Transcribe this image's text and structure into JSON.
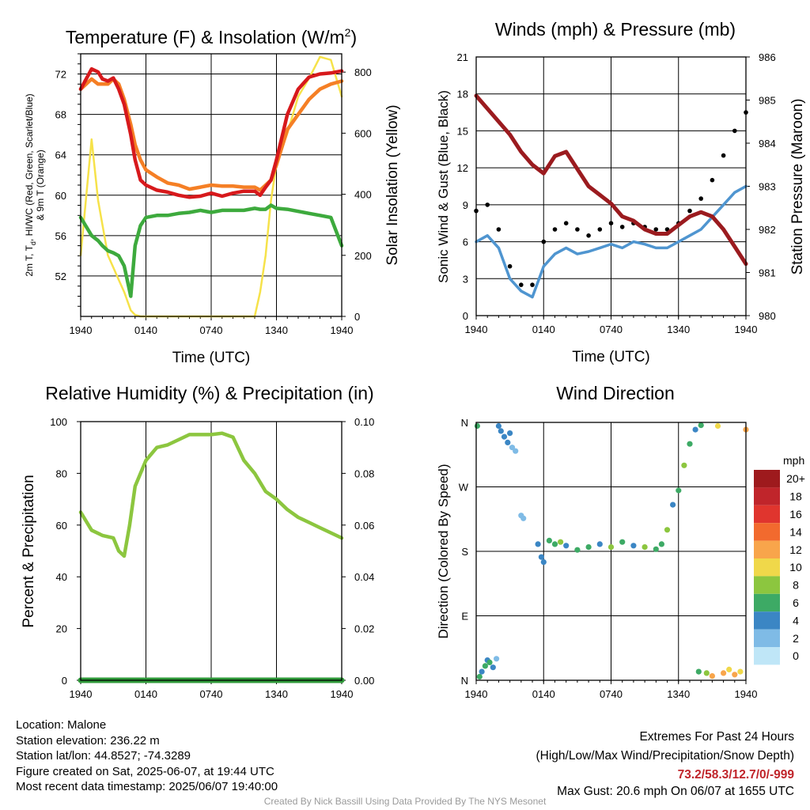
{
  "colors": {
    "temp": "#d7191c",
    "dewpoint": "#3daa3d",
    "hiwc_green": "#3daa3d",
    "hiwc_blue": "#4f95d0",
    "temp9m": "#f57f25",
    "solar": "#f6e24a",
    "rh": "#8cc63f",
    "precip": "#2f9a3a",
    "wind": "#4f95d0",
    "gust": "#000000",
    "pressure": "#9b1b1f",
    "extremes": "#c0252b"
  },
  "chart_data": [
    {
      "type": "line",
      "title": "Temperature (F) & Insolation (W/m²)",
      "xlabel": "Time (UTC)",
      "ylabel": "2m T, T_d, HI/WC (Red, Green, Scarlet/Blue) & 9m T (Orange)",
      "ylabel_line1": "2m T, T",
      "ylabel_sub": "d",
      "ylabel_line1b": ", HI/WC (Red, Green, Scarlet/Blue)",
      "ylabel_line2": "& 9m T (Orange)",
      "y2label": "Solar Insolation (Yellow)",
      "x_ticks": [
        "1940",
        "0140",
        "0740",
        "1340",
        "1940"
      ],
      "ylim": [
        48,
        74
      ],
      "y_ticks": [
        52,
        56,
        60,
        64,
        68,
        72
      ],
      "y2lim": [
        0,
        860
      ],
      "y2_ticks": [
        0,
        200,
        400,
        600,
        800
      ],
      "x_hours": [
        0,
        1,
        1.6,
        2,
        2.5,
        3,
        3.5,
        4,
        4.6,
        5,
        5.5,
        6,
        7,
        8,
        9,
        10,
        11,
        12,
        13,
        14,
        15,
        16,
        16.5,
        17,
        17.5,
        18,
        19,
        20,
        21,
        22,
        23,
        24
      ],
      "series": [
        {
          "name": "2m T",
          "axis": "left",
          "color": "#d7191c",
          "values": [
            70.5,
            72.5,
            72.2,
            71.5,
            71.3,
            71.6,
            70.5,
            69.0,
            66.0,
            63.5,
            61.5,
            61.0,
            60.5,
            60.3,
            60.0,
            59.8,
            59.9,
            60.2,
            59.9,
            60.2,
            60.4,
            60.4,
            60.0,
            60.8,
            61.5,
            63.5,
            68.0,
            70.5,
            71.7,
            72.0,
            72.1,
            72.3
          ]
        },
        {
          "name": "9m T",
          "axis": "left",
          "color": "#f57f25",
          "values": [
            70.5,
            71.5,
            71.0,
            71.0,
            71.0,
            71.5,
            71.0,
            69.5,
            67.0,
            65.0,
            63.5,
            62.5,
            61.8,
            61.2,
            61.0,
            60.6,
            60.8,
            61.0,
            60.9,
            60.9,
            60.8,
            60.8,
            60.5,
            61.0,
            61.5,
            63.0,
            66.5,
            68.0,
            69.5,
            70.5,
            71.0,
            71.3
          ]
        },
        {
          "name": "T_d",
          "axis": "left",
          "color": "#3daa3d",
          "values": [
            57.8,
            56.0,
            55.5,
            55.0,
            54.5,
            54.3,
            54.0,
            53.0,
            50.0,
            55.0,
            57.0,
            57.8,
            58.0,
            58.0,
            58.2,
            58.3,
            58.5,
            58.3,
            58.5,
            58.5,
            58.5,
            58.7,
            58.6,
            58.6,
            59.0,
            58.7,
            58.6,
            58.4,
            58.2,
            58.0,
            57.8,
            55.0
          ]
        },
        {
          "name": "Solar",
          "axis": "right",
          "color": "#f6e24a",
          "values": [
            200,
            580,
            380,
            300,
            200,
            160,
            120,
            80,
            20,
            5,
            0,
            0,
            0,
            0,
            0,
            0,
            0,
            0,
            0,
            0,
            0,
            0,
            80,
            200,
            380,
            500,
            600,
            720,
            780,
            850,
            840,
            720
          ]
        }
      ]
    },
    {
      "type": "line",
      "title": "Winds (mph) & Pressure (mb)",
      "xlabel": "Time (UTC)",
      "ylabel": "Sonic Wind & Gust (Blue, Black)",
      "y2label": "Station Pressure (Maroon)",
      "x_ticks": [
        "1940",
        "0140",
        "0740",
        "1340",
        "1940"
      ],
      "ylim": [
        0,
        21
      ],
      "y_ticks": [
        0,
        3,
        6,
        9,
        12,
        15,
        18,
        21
      ],
      "y2lim": [
        980,
        986
      ],
      "y2_ticks": [
        980,
        981,
        982,
        983,
        984,
        985,
        986
      ],
      "x_hours": [
        0,
        1,
        2,
        3,
        4,
        5,
        6,
        7,
        8,
        9,
        10,
        11,
        12,
        13,
        14,
        15,
        16,
        17,
        18,
        19,
        20,
        21,
        22,
        23,
        24
      ],
      "series": [
        {
          "name": "Sonic Wind",
          "axis": "left",
          "color": "#4f95d0",
          "values": [
            6.0,
            6.5,
            5.5,
            3.0,
            2.0,
            1.5,
            4.0,
            5.0,
            5.5,
            5.0,
            5.2,
            5.5,
            5.8,
            5.5,
            6.0,
            5.8,
            5.5,
            5.5,
            6.0,
            6.5,
            7.0,
            8.0,
            9.0,
            10.0,
            10.5
          ]
        },
        {
          "name": "Gust",
          "axis": "left",
          "color": "#000000",
          "values": [
            8.5,
            9.0,
            7.0,
            4.0,
            2.5,
            2.5,
            6.0,
            7.0,
            7.5,
            7.0,
            6.5,
            7.0,
            7.5,
            7.2,
            7.5,
            7.2,
            7.0,
            7.0,
            7.5,
            8.5,
            9.5,
            11.0,
            13.0,
            15.0,
            16.5
          ]
        },
        {
          "name": "Pressure",
          "axis": "right",
          "color": "#9b1b1f",
          "values": [
            985.1,
            984.8,
            984.5,
            984.2,
            983.8,
            983.5,
            983.3,
            983.7,
            983.8,
            983.4,
            983.0,
            982.8,
            982.6,
            982.3,
            982.2,
            982.0,
            981.9,
            981.9,
            982.1,
            982.3,
            982.4,
            982.3,
            982.0,
            981.6,
            981.2
          ]
        }
      ]
    },
    {
      "type": "line",
      "title": "Relative Humidity (%) & Precipitation (in)",
      "xlabel": "",
      "ylabel": "Percent & Precipitation",
      "x_ticks": [
        "1940",
        "0140",
        "0740",
        "1340",
        "1940"
      ],
      "ylim": [
        0,
        100
      ],
      "y_ticks": [
        0,
        20,
        40,
        60,
        80,
        100
      ],
      "y2lim": [
        0,
        0.1
      ],
      "y2_ticks": [
        "0.00",
        "0.02",
        "0.04",
        "0.06",
        "0.08",
        "0.10"
      ],
      "x_hours": [
        0,
        1,
        2,
        3,
        3.5,
        4,
        4.5,
        5,
        6,
        7,
        8,
        9,
        10,
        11,
        12,
        13,
        14,
        15,
        16,
        17,
        18,
        19,
        20,
        21,
        22,
        23,
        24
      ],
      "series": [
        {
          "name": "Relative Humidity",
          "axis": "left",
          "color": "#8cc63f",
          "values": [
            65,
            58,
            56,
            55,
            50,
            48,
            60,
            75,
            85,
            90,
            91,
            93,
            95,
            95,
            95,
            95.5,
            94,
            85,
            80,
            73,
            70,
            66,
            63,
            61,
            59,
            57,
            55
          ]
        },
        {
          "name": "Precipitation",
          "axis": "right",
          "color": "#2f9a3a",
          "values": [
            0,
            0,
            0,
            0,
            0,
            0,
            0,
            0,
            0,
            0,
            0,
            0,
            0,
            0,
            0,
            0,
            0,
            0,
            0,
            0,
            0,
            0,
            0,
            0,
            0,
            0,
            0
          ]
        }
      ]
    },
    {
      "type": "scatter",
      "title": "Wind Direction",
      "ylabel": "Direction (Colored By Speed)",
      "x_ticks": [
        "1940",
        "0140",
        "0740",
        "1340",
        "1940"
      ],
      "y_ticks": [
        "N",
        "E",
        "S",
        "W",
        "N"
      ],
      "ylim": [
        0,
        360
      ],
      "legend_title": "mph",
      "legend_labels": [
        "20+",
        "18",
        "16",
        "14",
        "12",
        "10",
        "8",
        "6",
        "4",
        "2",
        "0"
      ],
      "legend_colors": [
        "#9e1a1d",
        "#c0252b",
        "#e0352e",
        "#f26a2e",
        "#f8a54b",
        "#f0d84a",
        "#8cc63f",
        "#3daa65",
        "#3b86c4",
        "#7fbbe6",
        "#bfe6f7"
      ],
      "points": [
        {
          "x": 0.1,
          "y": 355,
          "s": 5
        },
        {
          "x": 0.3,
          "y": 5,
          "s": 6
        },
        {
          "x": 0.5,
          "y": 12,
          "s": 4
        },
        {
          "x": 0.8,
          "y": 20,
          "s": 5
        },
        {
          "x": 1.0,
          "y": 28,
          "s": 3
        },
        {
          "x": 1.2,
          "y": 25,
          "s": 6
        },
        {
          "x": 1.5,
          "y": 18,
          "s": 4
        },
        {
          "x": 1.8,
          "y": 30,
          "s": 2
        },
        {
          "x": 2.0,
          "y": 355,
          "s": 4
        },
        {
          "x": 2.2,
          "y": 348,
          "s": 3
        },
        {
          "x": 2.5,
          "y": 340,
          "s": 4
        },
        {
          "x": 2.8,
          "y": 332,
          "s": 3
        },
        {
          "x": 3.0,
          "y": 345,
          "s": 4
        },
        {
          "x": 3.2,
          "y": 325,
          "s": 2
        },
        {
          "x": 3.5,
          "y": 320,
          "s": 1
        },
        {
          "x": 4.0,
          "y": 230,
          "s": 2
        },
        {
          "x": 4.2,
          "y": 226,
          "s": 1
        },
        {
          "x": 5.5,
          "y": 190,
          "s": 4
        },
        {
          "x": 5.8,
          "y": 172,
          "s": 4
        },
        {
          "x": 6.0,
          "y": 165,
          "s": 3
        },
        {
          "x": 6.5,
          "y": 195,
          "s": 6
        },
        {
          "x": 7.0,
          "y": 190,
          "s": 5
        },
        {
          "x": 7.5,
          "y": 193,
          "s": 7
        },
        {
          "x": 8.0,
          "y": 188,
          "s": 4
        },
        {
          "x": 9.0,
          "y": 182,
          "s": 5
        },
        {
          "x": 10.0,
          "y": 186,
          "s": 6
        },
        {
          "x": 11.0,
          "y": 190,
          "s": 4
        },
        {
          "x": 12.0,
          "y": 186,
          "s": 7
        },
        {
          "x": 13.0,
          "y": 193,
          "s": 5
        },
        {
          "x": 14.0,
          "y": 188,
          "s": 4
        },
        {
          "x": 15.0,
          "y": 186,
          "s": 7
        },
        {
          "x": 16.0,
          "y": 183,
          "s": 5
        },
        {
          "x": 16.5,
          "y": 190,
          "s": 6
        },
        {
          "x": 17.0,
          "y": 210,
          "s": 7
        },
        {
          "x": 17.5,
          "y": 245,
          "s": 4
        },
        {
          "x": 18.0,
          "y": 265,
          "s": 6
        },
        {
          "x": 18.5,
          "y": 300,
          "s": 7
        },
        {
          "x": 19.0,
          "y": 330,
          "s": 6
        },
        {
          "x": 19.5,
          "y": 350,
          "s": 4
        },
        {
          "x": 20.0,
          "y": 356,
          "s": 6
        },
        {
          "x": 19.8,
          "y": 12,
          "s": 6
        },
        {
          "x": 20.5,
          "y": 10,
          "s": 8
        },
        {
          "x": 21.0,
          "y": 6,
          "s": 12
        },
        {
          "x": 21.5,
          "y": 355,
          "s": 10
        },
        {
          "x": 22.0,
          "y": 10,
          "s": 11
        },
        {
          "x": 22.5,
          "y": 15,
          "s": 9
        },
        {
          "x": 23.0,
          "y": 8,
          "s": 12
        },
        {
          "x": 23.5,
          "y": 12,
          "s": 10
        },
        {
          "x": 24.0,
          "y": 350,
          "s": 12
        }
      ]
    }
  ],
  "info": {
    "location": "Location: Malone",
    "elevation": "Station elevation: 236.22 m",
    "latlon": "Station lat/lon: 44.8527; -74.3289",
    "created": "Figure created on Sat, 2025-06-07, at 19:44 UTC",
    "recent": "Most recent data timestamp: 2025/06/07 19:40:00"
  },
  "extremes": {
    "heading": "Extremes For Past 24 Hours",
    "subheading": "(High/Low/Max Wind/Precipitation/Snow Depth)",
    "values": "73.2/58.3/12.7/0/-999",
    "max_gust": "Max Gust: 20.6 mph On 06/07 at 1655 UTC"
  },
  "credit": "Created By Nick Bassill Using Data Provided By The NYS Mesonet"
}
